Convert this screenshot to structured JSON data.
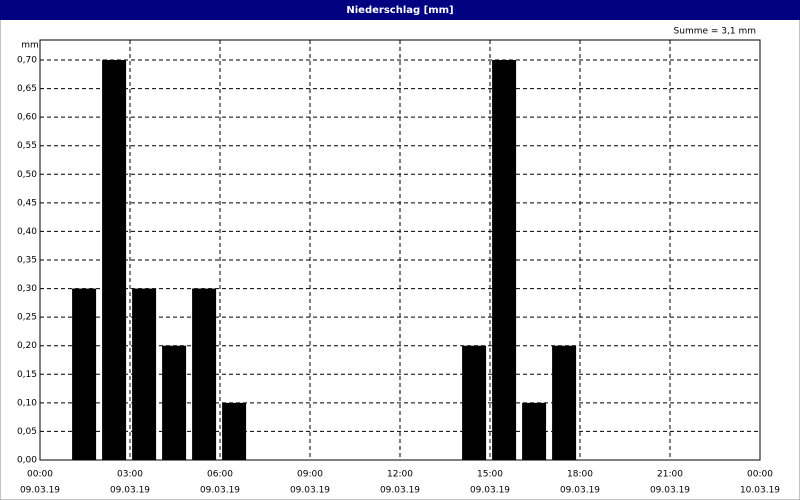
{
  "chart_data": {
    "type": "bar",
    "title": "Niederschlag [mm]",
    "y_label": "mm",
    "annotation": "Summe = 3,1 mm",
    "x": [
      1,
      2,
      3,
      4,
      5,
      6,
      14,
      15,
      16,
      17
    ],
    "values": [
      0.3,
      0.7,
      0.3,
      0.2,
      0.3,
      0.1,
      0.2,
      0.7,
      0.1,
      0.2
    ],
    "color": "#000000",
    "xlim": [
      0,
      24
    ],
    "xticks": [
      {
        "value": 0,
        "label": "00:00"
      },
      {
        "value": 3,
        "label": "03:00"
      },
      {
        "value": 6,
        "label": "06:00"
      },
      {
        "value": 9,
        "label": "09:00"
      },
      {
        "value": 12,
        "label": "12:00"
      },
      {
        "value": 15,
        "label": "15:00"
      },
      {
        "value": 18,
        "label": "18:00"
      },
      {
        "value": 21,
        "label": "21:00"
      },
      {
        "value": 24,
        "label": "00:00"
      }
    ],
    "xtick_dates": [
      "09.03.19",
      "09.03.19",
      "09.03.19",
      "09.03.19",
      "09.03.19",
      "09.03.19",
      "09.03.19",
      "09.03.19",
      "10.03.19"
    ],
    "ylim": [
      0,
      0.735
    ],
    "yticks": [
      {
        "value": 0,
        "label": "0,00"
      },
      {
        "value": 0.05,
        "label": "0,05"
      },
      {
        "value": 0.1,
        "label": "0,10"
      },
      {
        "value": 0.15,
        "label": "0,15"
      },
      {
        "value": 0.2,
        "label": "0,20"
      },
      {
        "value": 0.25,
        "label": "0,25"
      },
      {
        "value": 0.3,
        "label": "0,30"
      },
      {
        "value": 0.35,
        "label": "0,35"
      },
      {
        "value": 0.4,
        "label": "0,40"
      },
      {
        "value": 0.45,
        "label": "0,45"
      },
      {
        "value": 0.5,
        "label": "0,50"
      },
      {
        "value": 0.55,
        "label": "0,55"
      },
      {
        "value": 0.6,
        "label": "0,60"
      },
      {
        "value": 0.65,
        "label": "0,65"
      },
      {
        "value": 0.7,
        "label": "0,70"
      }
    ],
    "grid": true
  }
}
